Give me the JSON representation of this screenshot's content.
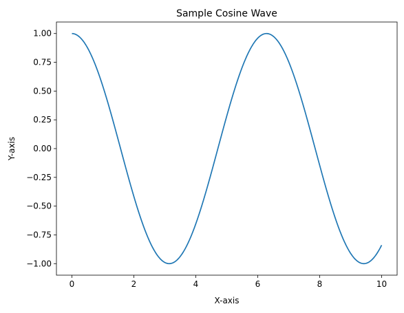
{
  "chart_data": {
    "type": "line",
    "title": "Sample Cosine Wave",
    "xlabel": "X-axis",
    "ylabel": "Y-axis",
    "xlim": [
      -0.5,
      10.5
    ],
    "ylim": [
      -1.1,
      1.1
    ],
    "xticks": [
      0,
      2,
      4,
      6,
      8,
      10
    ],
    "xtick_labels": [
      "0",
      "2",
      "4",
      "6",
      "8",
      "10"
    ],
    "yticks": [
      1.0,
      0.75,
      0.5,
      0.25,
      0.0,
      -0.25,
      -0.5,
      -0.75,
      -1.0
    ],
    "ytick_labels": [
      "1.00",
      "0.75",
      "0.50",
      "0.25",
      "0.00",
      "−0.25",
      "−0.50",
      "−0.75",
      "−1.00"
    ],
    "grid": false,
    "series": [
      {
        "color": "#1f77b4",
        "x": [
          0,
          0.5,
          1,
          1.5,
          2,
          2.5,
          3,
          3.14,
          3.5,
          4,
          4.5,
          5,
          5.5,
          6,
          6.28,
          6.5,
          7,
          7.5,
          8,
          8.5,
          9,
          9.42,
          9.5,
          10
        ],
        "y": [
          1.0,
          0.878,
          0.54,
          0.071,
          -0.416,
          -0.801,
          -0.99,
          -1.0,
          -0.936,
          -0.654,
          -0.211,
          0.284,
          0.709,
          0.96,
          1.0,
          0.977,
          0.754,
          0.347,
          -0.146,
          -0.602,
          -0.911,
          -1.0,
          -0.997,
          -0.839
        ]
      }
    ]
  }
}
